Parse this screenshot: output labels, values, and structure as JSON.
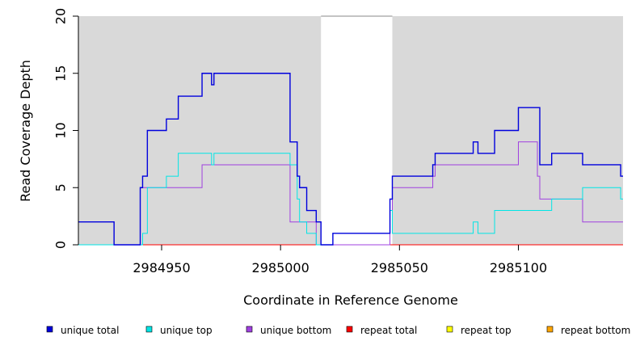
{
  "chart_data": {
    "type": "line",
    "title": "",
    "xlabel": "Coordinate in Reference Genome",
    "ylabel": "Read Coverage Depth",
    "xlim": [
      2984915,
      2985144
    ],
    "ylim": [
      0,
      20
    ],
    "x_ticks": [
      2984950,
      2985000,
      2985050,
      2985100
    ],
    "x_tick_labels": [
      "2984950",
      "2985000",
      "2985050",
      "2985100"
    ],
    "y_ticks": [
      0,
      5,
      10,
      15,
      20
    ],
    "y_tick_labels": [
      "0",
      "5",
      "10",
      "15",
      "20"
    ],
    "background_color": "#d9d9d9",
    "highlight_region": [
      2985017,
      2985047
    ],
    "highlight_color": "#ffffff",
    "legend_position": "bottom",
    "series": [
      {
        "name": "unique total",
        "color": "#0000dd",
        "steps": [
          [
            2984915,
            2
          ],
          [
            2984930,
            0
          ],
          [
            2984941,
            5
          ],
          [
            2984942,
            6
          ],
          [
            2984944,
            10
          ],
          [
            2984952,
            11
          ],
          [
            2984957,
            13
          ],
          [
            2984967,
            15
          ],
          [
            2984971,
            14
          ],
          [
            2984972,
            15
          ],
          [
            2985004,
            9
          ],
          [
            2985007,
            6
          ],
          [
            2985008,
            5
          ],
          [
            2985011,
            3
          ],
          [
            2985015,
            2
          ],
          [
            2985017,
            0
          ],
          [
            2985022,
            1
          ],
          [
            2985046,
            4
          ],
          [
            2985047,
            6
          ],
          [
            2985064,
            7
          ],
          [
            2985065,
            8
          ],
          [
            2985081,
            9
          ],
          [
            2985083,
            8
          ],
          [
            2985090,
            10
          ],
          [
            2985100,
            12
          ],
          [
            2985109,
            7
          ],
          [
            2985114,
            8
          ],
          [
            2985127,
            7
          ],
          [
            2985143,
            6
          ],
          [
            2985144,
            6
          ]
        ]
      },
      {
        "name": "unique top",
        "color": "#00e5e5",
        "steps": [
          [
            2984915,
            0
          ],
          [
            2984940,
            0
          ],
          [
            2984942,
            1
          ],
          [
            2984944,
            5
          ],
          [
            2984952,
            6
          ],
          [
            2984957,
            8
          ],
          [
            2984971,
            7
          ],
          [
            2984972,
            8
          ],
          [
            2985004,
            7
          ],
          [
            2985007,
            4
          ],
          [
            2985008,
            2
          ],
          [
            2985011,
            1
          ],
          [
            2985015,
            0
          ],
          [
            2985017,
            0
          ],
          [
            2985022,
            1
          ],
          [
            2985046,
            3
          ],
          [
            2985047,
            1
          ],
          [
            2985081,
            2
          ],
          [
            2985083,
            1
          ],
          [
            2985090,
            3
          ],
          [
            2985114,
            4
          ],
          [
            2985127,
            5
          ],
          [
            2985143,
            4
          ],
          [
            2985144,
            4
          ]
        ]
      },
      {
        "name": "unique bottom",
        "color": "#a040e0",
        "steps": [
          [
            2984915,
            0
          ],
          [
            2984940,
            0
          ],
          [
            2984941,
            5
          ],
          [
            2984967,
            7
          ],
          [
            2985004,
            2
          ],
          [
            2985015,
            0
          ],
          [
            2985017,
            0
          ],
          [
            2985046,
            3
          ],
          [
            2985047,
            5
          ],
          [
            2985064,
            6
          ],
          [
            2985065,
            7
          ],
          [
            2985100,
            9
          ],
          [
            2985108,
            6
          ],
          [
            2985109,
            4
          ],
          [
            2985127,
            2
          ],
          [
            2985144,
            2
          ]
        ]
      },
      {
        "name": "repeat total",
        "color": "#ff0000",
        "steps": [
          [
            2984915,
            0
          ],
          [
            2985144,
            0
          ]
        ]
      },
      {
        "name": "repeat top",
        "color": "#ffff00",
        "steps": [
          [
            2984915,
            0
          ],
          [
            2985144,
            0
          ]
        ]
      },
      {
        "name": "repeat bottom",
        "color": "#ffa500",
        "steps": [
          [
            2984915,
            0
          ],
          [
            2985144,
            0
          ]
        ]
      }
    ]
  }
}
